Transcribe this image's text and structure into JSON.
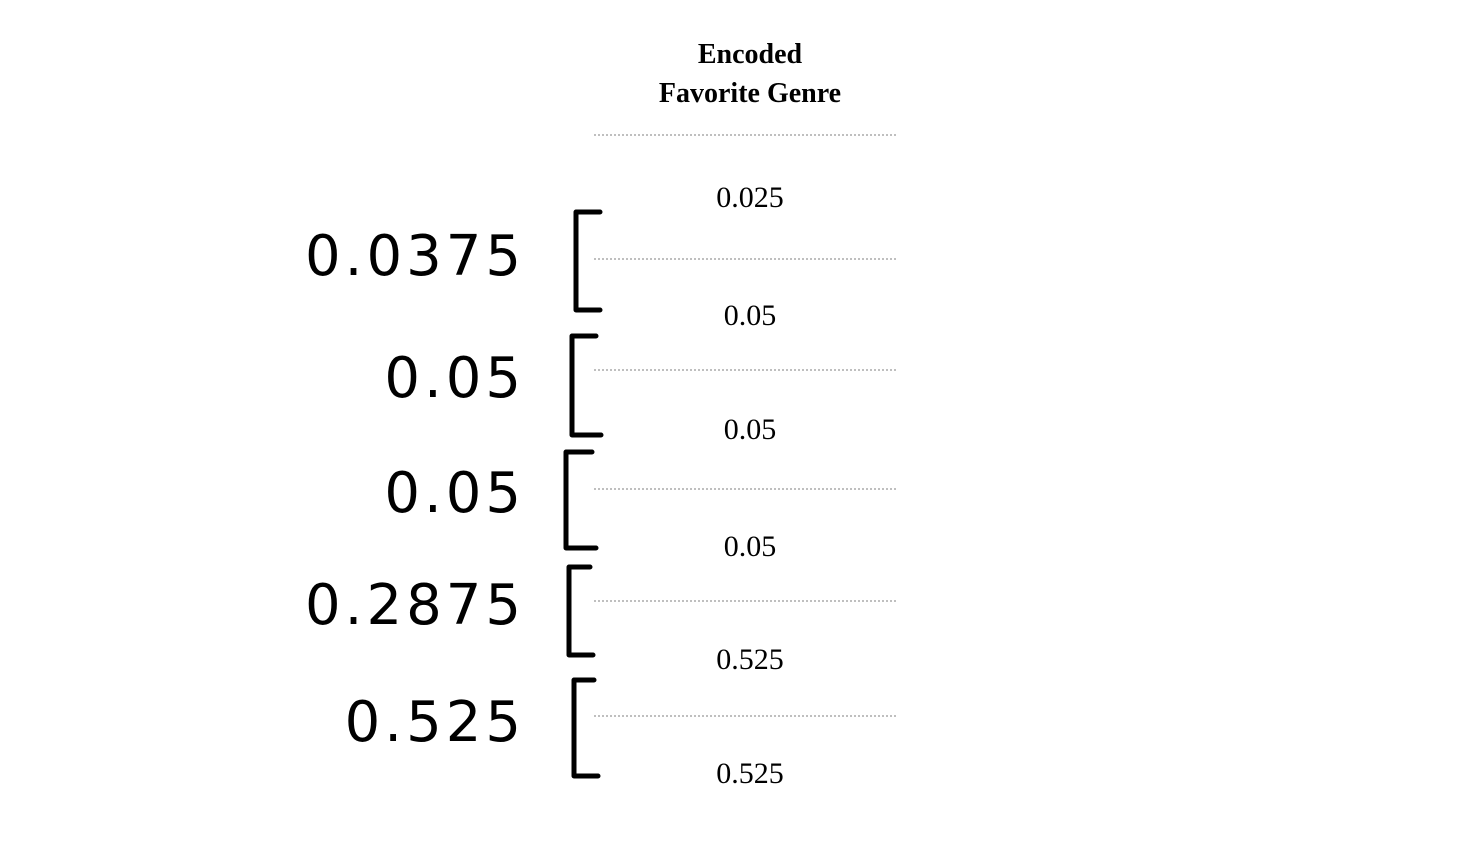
{
  "header": {
    "lines": [
      "Encoded",
      "Favorite Genre"
    ]
  },
  "table": {
    "rows": [
      0.025,
      0.05,
      0.05,
      0.05,
      0.525,
      0.525
    ]
  },
  "annotations": {
    "averages": [
      0.0375,
      0.05,
      0.05,
      0.2875,
      0.525
    ]
  }
}
